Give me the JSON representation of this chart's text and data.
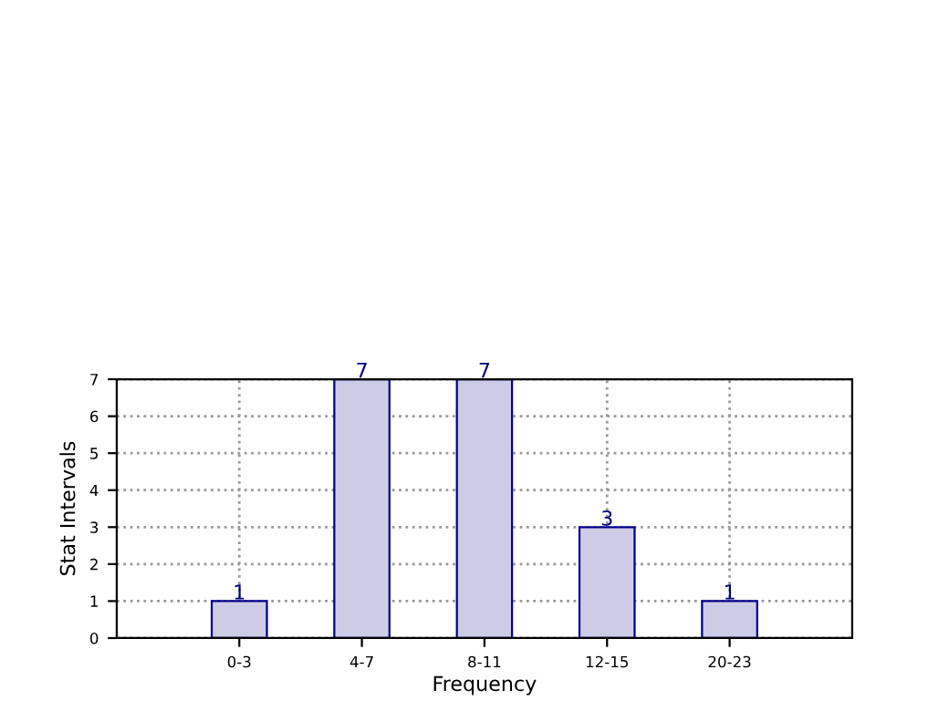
{
  "chart_data": {
    "type": "bar",
    "xlabel": "Frequency",
    "ylabel": "Stat Intervals",
    "categories": [
      "0-3",
      "4-7",
      "8-11",
      "12-15",
      "20-23"
    ],
    "values": [
      1,
      7,
      7,
      3,
      1
    ],
    "color": "#cccce6",
    "ylim": [
      0,
      7
    ],
    "yticks": [
      0,
      1,
      2,
      3,
      4,
      5,
      6,
      7
    ],
    "grid": true,
    "data_labels": true
  }
}
